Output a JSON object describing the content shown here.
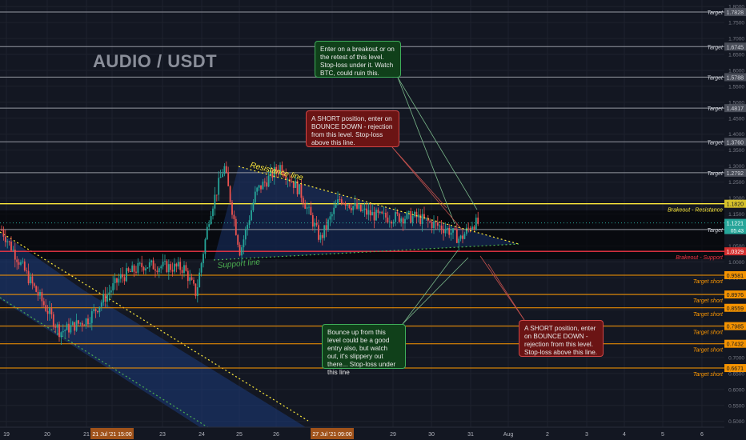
{
  "title": "AUDIO / USDT",
  "colors": {
    "background": "#131722",
    "up_candle": "#26a69a",
    "down_candle": "#ef5350",
    "resistance": "#ffeb3b",
    "breakout_support": "#f23645",
    "target_up": "#9598a1",
    "target_short": "#ff9800",
    "channel_fill": "#1c3a7a",
    "support_label": "#4caf50",
    "resistance_label": "#ffeb3b",
    "note_green": "#10401a",
    "note_red": "#6b1414"
  },
  "chart_data": {
    "type": "candlestick",
    "title": "AUDIO / USDT",
    "xlabel": "",
    "ylabel": "",
    "ylim": [
      0.46,
      1.81
    ],
    "grid": true,
    "x_ticks": [
      "19",
      "20",
      "21",
      "21 Jul '21  15:00",
      "23",
      "24",
      "25",
      "26",
      "27 Jul '21  09:00",
      "29",
      "30",
      "31",
      "Aug",
      "2",
      "3",
      "4",
      "5",
      "6"
    ],
    "y_ticks": [
      "1.8000",
      "1.7500",
      "1.7000",
      "1.6500",
      "1.6000",
      "1.5500",
      "1.5000",
      "1.4500",
      "1.4000",
      "1.3500",
      "1.3000",
      "1.2500",
      "1.2000",
      "1.1500",
      "1.1000",
      "1.0500",
      "1.0000",
      "0.9500",
      "0.9000",
      "0.8500",
      "0.8000",
      "0.7500",
      "0.7000",
      "0.6500",
      "0.6000",
      "0.5500",
      "0.5000"
    ],
    "last_price": "1.1221",
    "countdown": "05:43",
    "target_levels": [
      {
        "value": "1.7828",
        "label": "Target"
      },
      {
        "value": "1.6745",
        "label": "Target"
      },
      {
        "value": "1.5788",
        "label": "Target"
      },
      {
        "value": "1.4817",
        "label": "Target"
      },
      {
        "value": "1.3760",
        "label": "Target"
      },
      {
        "value": "1.2792",
        "label": "Target"
      },
      {
        "value": "1.1012",
        "label": "Target"
      }
    ],
    "resistance_level": {
      "value": "1.1820",
      "label": "Brakeout - Resistance"
    },
    "breakout_support_level": {
      "value": "1.0329",
      "label": "Brakeout - Support"
    },
    "short_targets": [
      {
        "value": "0.9581",
        "label": "Target short"
      },
      {
        "value": "0.8976",
        "label": "Target short"
      },
      {
        "value": "0.8559",
        "label": "Target short"
      },
      {
        "value": "0.7985",
        "label": "Target short"
      },
      {
        "value": "0.7432",
        "label": "Target short"
      },
      {
        "value": "0.6671",
        "label": "Target short"
      }
    ],
    "trendlines": {
      "resistance_label": "Resistance line",
      "support_label": "Support line"
    }
  },
  "notes": [
    {
      "id": "breakout",
      "text": "Enter on a breakout or on the retest of this level. Stop-loss under it. Watch BTC, could ruin this."
    },
    {
      "id": "short-top",
      "text": "A SHORT position, enter on BOUNCE DOWN - rejection from this level. Stop-loss above this line."
    },
    {
      "id": "bounce",
      "text": "Bounce up from this level could be a good entry also, but watch out, it's slippery out there... Stop-loss under this line"
    },
    {
      "id": "short-bottom",
      "text": "A SHORT position, enter on BOUNCE DOWN - rejection from this level. Stop-loss above this line."
    }
  ]
}
